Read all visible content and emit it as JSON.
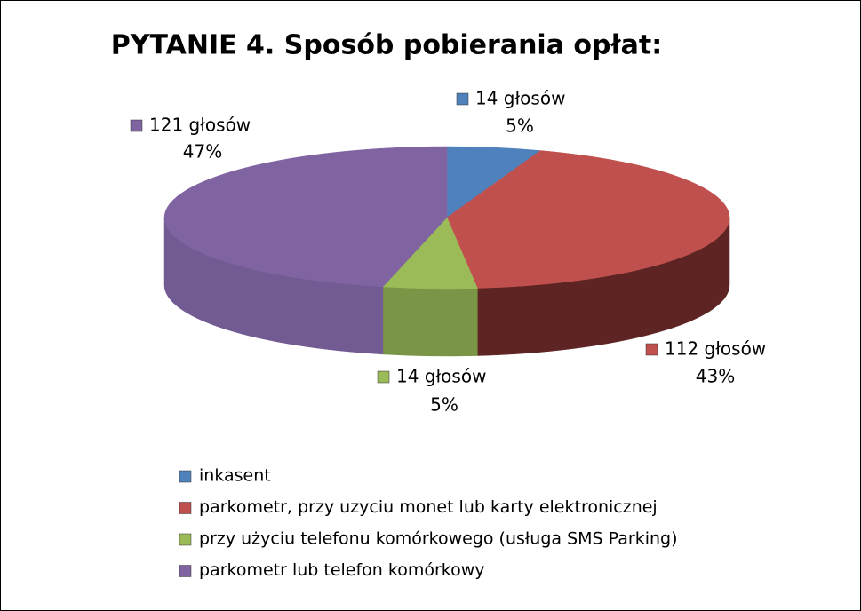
{
  "chart_data": {
    "type": "pie3d",
    "title": "PYTANIE 4. Sposób pobierania opłat:",
    "categories": [
      "inkasent",
      "parkometr, przy uzyciu monet lub karty elektronicznej",
      "przy użyciu telefonu komórkowego (usługa SMS Parking)",
      "parkometr lub telefon komórkowy"
    ],
    "values": [
      14,
      112,
      14,
      121
    ],
    "value_labels": [
      "14 głosów",
      "112 głosów",
      "14 głosów",
      "121 głosów"
    ],
    "percent_values": [
      5,
      43,
      5,
      47
    ],
    "percent_labels": [
      "5%",
      "43%",
      "5%",
      "47%"
    ],
    "colors": [
      "#4f81bd",
      "#c0504d",
      "#9bbb59",
      "#8064a2"
    ],
    "side_colors": [
      "#36608f",
      "#5e2424",
      "#7a9545",
      "#725a93"
    ],
    "legend": "bottom"
  }
}
